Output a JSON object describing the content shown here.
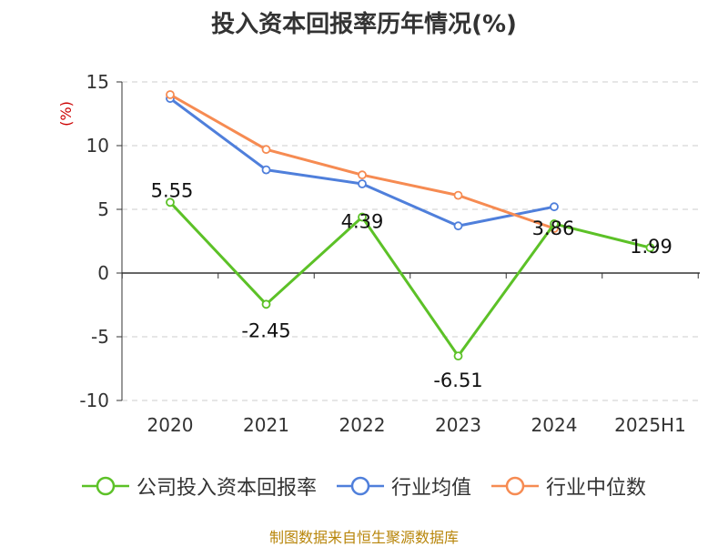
{
  "chart_data": {
    "type": "line",
    "title": "投入资本回报率历年情况(%)",
    "ylabel": "(%)",
    "categories": [
      "2020",
      "2021",
      "2022",
      "2023",
      "2024",
      "2025H1"
    ],
    "ylim": [
      -10,
      15
    ],
    "yticks": [
      15,
      10,
      5,
      0,
      -5,
      -10
    ],
    "grid": true,
    "legend_position": "bottom",
    "series": [
      {
        "name": "公司投入资本回报率",
        "color": "#5cc127",
        "values": [
          5.55,
          -2.45,
          4.39,
          -6.51,
          3.86,
          1.99
        ],
        "labels": [
          "5.55",
          "-2.45",
          "4.39",
          "-6.51",
          "3.86",
          "1.99"
        ]
      },
      {
        "name": "行业均值",
        "color": "#4f7fdb",
        "values": [
          13.7,
          8.1,
          7.0,
          3.7,
          5.2,
          null
        ]
      },
      {
        "name": "行业中位数",
        "color": "#f68b52",
        "values": [
          14.0,
          9.7,
          7.7,
          6.1,
          3.5,
          null
        ]
      }
    ]
  },
  "footer": {
    "source": "制图数据来自恒生聚源数据库"
  }
}
